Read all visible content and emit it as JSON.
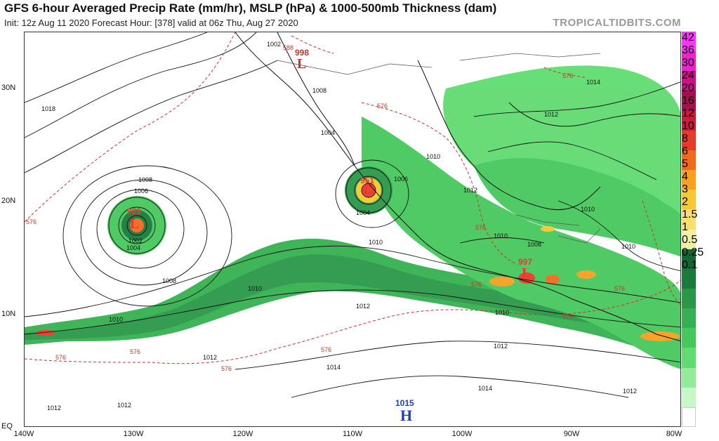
{
  "header": {
    "title": "GFS 6-hour Averaged Precip Rate (mm/hr), MSLP (hPa) & 1000-500mb Thickness (dam)",
    "subtitle": "Init: 12z Aug 11 2020   Forecast Hour: [378]   valid at 06z Thu, Aug 27 2020",
    "brand": "TROPICALTIDBITS.COM"
  },
  "axes": {
    "lat_labels": [
      "30N",
      "20N",
      "10N",
      "EQ"
    ],
    "lon_labels": [
      "140W",
      "130W",
      "120W",
      "110W",
      "100W",
      "90W",
      "80W"
    ]
  },
  "colorbar": {
    "labels": [
      "42",
      "36",
      "30",
      "24",
      "20",
      "16",
      "12",
      "10",
      "8",
      "6",
      "5",
      "4",
      "3",
      "2",
      "1.5",
      "1",
      "0.5",
      "0.25",
      "0.1"
    ],
    "colors": [
      "#ff33ff",
      "#ee22cc",
      "#cc1188",
      "#a8104c",
      "#c81e3c",
      "#e83a2a",
      "#f06a1e",
      "#f8a020",
      "#f8c830",
      "#f8e070",
      "#f0f0a0",
      "#116633",
      "#1a7a3c",
      "#2a9848",
      "#36b050",
      "#46c85c",
      "#60dc70",
      "#90ec98",
      "#c8f8c8"
    ]
  },
  "pressure_systems": [
    {
      "type": "L",
      "value": "998"
    },
    {
      "type": "L",
      "value": "989"
    },
    {
      "type": "L",
      "value": "951"
    },
    {
      "type": "L",
      "value": "997"
    },
    {
      "type": "H",
      "value": "1015"
    }
  ],
  "isobar_labels": [
    "1002",
    "1008",
    "1018",
    "1004",
    "1010",
    "1008",
    "1006",
    "1002",
    "1004",
    "1008",
    "1004",
    "1006",
    "1010",
    "1012",
    "1010",
    "1014",
    "1012",
    "1010",
    "1012",
    "1008",
    "1010",
    "1010",
    "1010",
    "1010",
    "1012",
    "1012",
    "1014",
    "1014",
    "1012",
    "1012",
    "1012"
  ],
  "thickness_labels": [
    "588",
    "576",
    "576",
    "576",
    "576",
    "576",
    "576",
    "576",
    "576",
    "576",
    "576",
    "576"
  ]
}
